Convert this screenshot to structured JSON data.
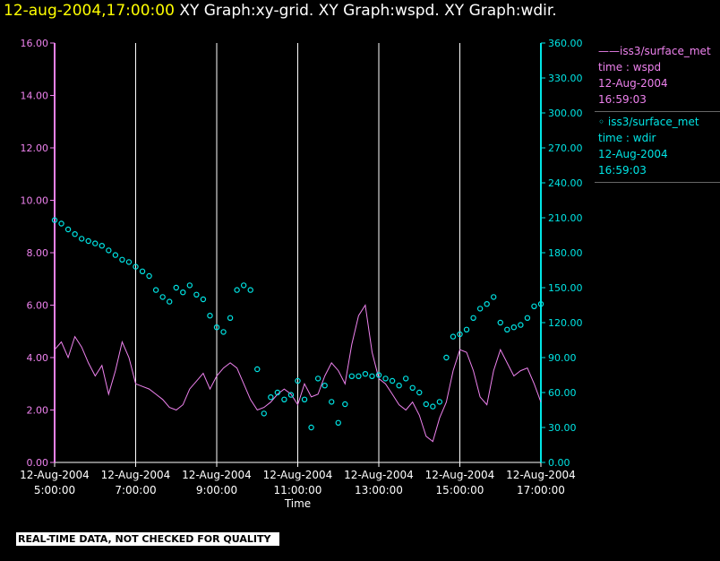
{
  "header": {
    "time": "12-aug-2004,17:00:00",
    "graphs": "XY Graph:xy-grid.  XY Graph:wspd.  XY Graph:wdir."
  },
  "notice": "REAL-TIME DATA, NOT CHECKED FOR QUALITY",
  "legend": {
    "wspd": [
      "——iss3/surface_met",
      "time : wspd",
      "12-Aug-2004",
      "16:59:03"
    ],
    "wdir": [
      "◦ iss3/surface_met",
      "time : wdir",
      "12-Aug-2004",
      "16:59:03"
    ]
  },
  "chart_data": {
    "type": "line",
    "xlabel": "Time",
    "x_ticks": [
      [
        "12-Aug-2004",
        "5:00:00"
      ],
      [
        "12-Aug-2004",
        "7:00:00"
      ],
      [
        "12-Aug-2004",
        "9:00:00"
      ],
      [
        "12-Aug-2004",
        "11:00:00"
      ],
      [
        "12-Aug-2004",
        "13:00:00"
      ],
      [
        "12-Aug-2004",
        "15:00:00"
      ],
      [
        "12-Aug-2004",
        "17:00:00"
      ]
    ],
    "xlim": [
      "05:00",
      "17:00"
    ],
    "grid": "vertical",
    "y_left": {
      "ticks": [
        "0.00",
        "2.00",
        "4.00",
        "6.00",
        "8.00",
        "10.00",
        "12.00",
        "14.00",
        "16.00"
      ],
      "ylim": [
        0,
        16
      ],
      "color": "#ee82ee"
    },
    "y_right": {
      "ticks": [
        "0.00",
        "30.00",
        "60.00",
        "90.00",
        "120.00",
        "150.00",
        "180.00",
        "210.00",
        "240.00",
        "270.00",
        "300.00",
        "330.00",
        "360.00"
      ],
      "ylim": [
        0,
        360
      ],
      "color": "#00e5e5"
    },
    "series": [
      {
        "name": "iss3/surface_met time : wspd",
        "axis": "left",
        "style": "line",
        "color": "#ee82ee",
        "x": [
          "05:00",
          "05:10",
          "05:20",
          "05:30",
          "05:40",
          "05:50",
          "06:00",
          "06:10",
          "06:20",
          "06:30",
          "06:40",
          "06:50",
          "07:00",
          "07:10",
          "07:20",
          "07:30",
          "07:40",
          "07:50",
          "08:00",
          "08:10",
          "08:20",
          "08:30",
          "08:40",
          "08:50",
          "09:00",
          "09:10",
          "09:20",
          "09:30",
          "09:40",
          "09:50",
          "10:00",
          "10:10",
          "10:20",
          "10:30",
          "10:40",
          "10:50",
          "11:00",
          "11:10",
          "11:20",
          "11:30",
          "11:40",
          "11:50",
          "12:00",
          "12:10",
          "12:20",
          "12:30",
          "12:40",
          "12:50",
          "13:00",
          "13:10",
          "13:20",
          "13:30",
          "13:40",
          "13:50",
          "14:00",
          "14:10",
          "14:20",
          "14:30",
          "14:40",
          "14:50",
          "15:00",
          "15:10",
          "15:20",
          "15:30",
          "15:40",
          "15:50",
          "16:00",
          "16:10",
          "16:20",
          "16:30",
          "16:40",
          "16:50",
          "17:00"
        ],
        "values": [
          4.3,
          4.6,
          4.0,
          4.8,
          4.4,
          3.8,
          3.3,
          3.7,
          2.6,
          3.5,
          4.6,
          4.0,
          3.0,
          2.9,
          2.8,
          2.6,
          2.4,
          2.1,
          2.0,
          2.2,
          2.8,
          3.1,
          3.4,
          2.8,
          3.3,
          3.6,
          3.8,
          3.6,
          3.0,
          2.4,
          2.0,
          2.1,
          2.3,
          2.6,
          2.8,
          2.6,
          2.2,
          3.0,
          2.5,
          2.6,
          3.3,
          3.8,
          3.5,
          3.0,
          4.5,
          5.6,
          6.0,
          4.2,
          3.2,
          3.0,
          2.6,
          2.2,
          2.0,
          2.3,
          1.8,
          1.0,
          0.8,
          1.7,
          2.3,
          3.5,
          4.3,
          4.2,
          3.5,
          2.5,
          2.2,
          3.5,
          4.3,
          3.8,
          3.3,
          3.5,
          3.6,
          3.0,
          2.3
        ]
      },
      {
        "name": "iss3/surface_met time : wdir",
        "axis": "right",
        "style": "markers",
        "color": "#00e5e5",
        "x": [
          "05:00",
          "05:10",
          "05:20",
          "05:30",
          "05:40",
          "05:50",
          "06:00",
          "06:10",
          "06:20",
          "06:30",
          "06:40",
          "06:50",
          "07:00",
          "07:10",
          "07:20",
          "07:30",
          "07:40",
          "07:50",
          "08:00",
          "08:10",
          "08:20",
          "08:30",
          "08:40",
          "08:50",
          "09:00",
          "09:10",
          "09:20",
          "09:30",
          "09:40",
          "09:50",
          "10:00",
          "10:10",
          "10:20",
          "10:30",
          "10:40",
          "10:50",
          "11:00",
          "11:10",
          "11:20",
          "11:30",
          "11:40",
          "11:50",
          "12:00",
          "12:10",
          "12:20",
          "12:30",
          "12:40",
          "12:50",
          "13:00",
          "13:10",
          "13:20",
          "13:30",
          "13:40",
          "13:50",
          "14:00",
          "14:10",
          "14:20",
          "14:30",
          "14:40",
          "14:50",
          "15:00",
          "15:10",
          "15:20",
          "15:30",
          "15:40",
          "15:50",
          "16:00",
          "16:10",
          "16:20",
          "16:30",
          "16:40",
          "16:50",
          "17:00"
        ],
        "values": [
          208,
          205,
          200,
          196,
          192,
          190,
          188,
          186,
          182,
          178,
          174,
          172,
          168,
          164,
          160,
          148,
          142,
          138,
          150,
          146,
          152,
          144,
          140,
          126,
          116,
          112,
          124,
          148,
          152,
          148,
          80,
          42,
          56,
          60,
          54,
          58,
          70,
          54,
          30,
          72,
          66,
          52,
          34,
          50,
          74,
          74,
          76,
          74,
          75,
          72,
          70,
          66,
          72,
          64,
          60,
          50,
          48,
          52,
          90,
          108,
          110,
          114,
          124,
          132,
          136,
          142,
          120,
          114,
          116,
          118,
          124,
          134,
          136
        ]
      }
    ]
  }
}
